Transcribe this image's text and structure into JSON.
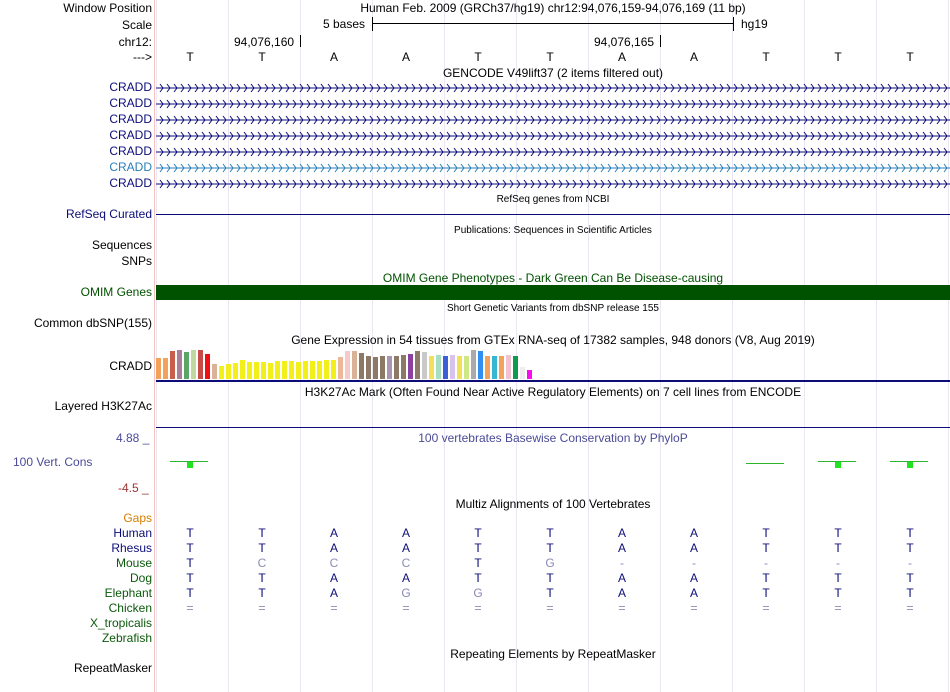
{
  "header": {
    "window_position_label": "Window Position",
    "window_position_value": "Human Feb. 2009 (GRCh37/hg19)   chr12:94,076,159-94,076,169 (11 bp)",
    "scale_label": "Scale",
    "scale_text": "5 bases",
    "scale_assembly": "hg19",
    "chrom_label": "chr12:",
    "pos_left": "94,076,160",
    "pos_right": "94,076,165",
    "strand_label": "--->",
    "bases": [
      "T",
      "T",
      "A",
      "A",
      "T",
      "T",
      "A",
      "A",
      "T",
      "T",
      "T"
    ]
  },
  "gencode": {
    "title": "GENCODE V49lift37 (2 items filtered out)",
    "transcripts": [
      "CRADD",
      "CRADD",
      "CRADD",
      "CRADD",
      "CRADD",
      "CRADD",
      "CRADD"
    ],
    "colors": [
      "#0c0c78",
      "#0c0c78",
      "#0c0c78",
      "#0c0c78",
      "#0c0c78",
      "#2a7fb8",
      "#0c0c78"
    ]
  },
  "refseq": {
    "label": "RefSeq Curated",
    "title": "RefSeq genes from NCBI"
  },
  "publications": {
    "title": "Publications: Sequences in Scientific Articles",
    "label_sequences": "Sequences",
    "label_snps": "SNPs"
  },
  "omim": {
    "title": "OMIM Gene Phenotypes - Dark Green Can Be Disease-causing",
    "label": "OMIM Genes",
    "color": "#005100"
  },
  "dbsnp": {
    "title": "Short Genetic Variants from dbSNP release 155",
    "label": "Common dbSNP(155)"
  },
  "gtex": {
    "title": "Gene Expression in 54 tissues from GTEx RNA-seq of 17382 samples, 948 donors (V8, Aug 2019)",
    "label": "CRADD",
    "values": [
      0.72,
      0.72,
      0.95,
      1.0,
      0.92,
      1.0,
      1.0,
      0.85,
      0.5,
      0.45,
      0.5,
      0.55,
      0.65,
      0.6,
      0.6,
      0.6,
      0.55,
      0.62,
      0.62,
      0.62,
      0.6,
      0.62,
      0.62,
      0.62,
      0.65,
      0.65,
      0.75,
      0.95,
      0.95,
      0.9,
      0.8,
      0.75,
      0.8,
      0.8,
      0.8,
      0.82,
      0.85,
      0.95,
      0.92,
      0.8,
      0.82,
      0.78,
      0.82,
      0.8,
      0.78,
      1.0,
      0.95,
      0.8,
      0.78,
      0.78,
      0.82,
      0.8,
      0.4,
      0.3
    ],
    "colors": [
      "#f2a25a",
      "#f2a25a",
      "#c95f4b",
      "#ab7d99",
      "#5ba666",
      "#c1d9a0",
      "#c84a47",
      "#f10d12",
      "#d9b298",
      "#f3ef18",
      "#f3ef18",
      "#f3ef18",
      "#f3ef18",
      "#f3ef18",
      "#f3ef18",
      "#f3ef18",
      "#f3ef18",
      "#f3ef18",
      "#f3ef18",
      "#f3ef18",
      "#f3ef18",
      "#f3ef18",
      "#f3ef18",
      "#f3ef18",
      "#f3ef18",
      "#f3ef18",
      "#eeb79a",
      "#f5cac8",
      "#d9b298",
      "#8c7966",
      "#8c7966",
      "#8c7966",
      "#8c7966",
      "#a996b3",
      "#8c7966",
      "#8c7966",
      "#8c40a0",
      "#8c7966",
      "#c9c9c9",
      "#f2df5a",
      "#a7dfc1",
      "#3a5fd6",
      "#d7c2f0",
      "#f2df5a",
      "#cde884",
      "#aaaaaa",
      "#2f8ff2",
      "#f2a25a",
      "#36b8d3",
      "#f2a25a",
      "#f2c2d0",
      "#0f9a4f",
      "#eeeeee",
      "#fa0ef0"
    ]
  },
  "h3k27ac": {
    "title": "H3K27Ac Mark (Often Found Near Active Regulatory Elements) on 7 cell lines from ENCODE",
    "label": "Layered H3K27Ac"
  },
  "phylop": {
    "title": "100 vertebrates Basewise Conservation by PhyloP",
    "label": "100 Vert. Cons",
    "ymax_label": "4.88 _",
    "ymin_label": "-4.5 _",
    "values": [
      0.5,
      0,
      0,
      0,
      0,
      0,
      0,
      0,
      -0.1,
      0.55,
      0.55
    ],
    "ymax": 4.88,
    "ymin": -4.5
  },
  "multiz": {
    "title": "Multiz Alignments of 100 Vertebrates",
    "gaps_label": "Gaps",
    "species": [
      {
        "name": "Human",
        "bases": [
          "T",
          "T",
          "A",
          "A",
          "T",
          "T",
          "A",
          "A",
          "T",
          "T",
          "T"
        ],
        "dim": [
          0,
          0,
          0,
          0,
          0,
          0,
          0,
          0,
          0,
          0,
          0
        ]
      },
      {
        "name": "Rhesus",
        "bases": [
          "T",
          "T",
          "A",
          "A",
          "T",
          "T",
          "A",
          "A",
          "T",
          "T",
          "T"
        ],
        "dim": [
          0,
          0,
          0,
          0,
          0,
          0,
          0,
          0,
          0,
          0,
          0
        ]
      },
      {
        "name": "Mouse",
        "bases": [
          "T",
          "C",
          "C",
          "C",
          "T",
          "G",
          "-",
          "-",
          "-",
          "-",
          "-"
        ],
        "dim": [
          0,
          1,
          1,
          1,
          0,
          1,
          1,
          1,
          1,
          1,
          1
        ]
      },
      {
        "name": "Dog",
        "bases": [
          "T",
          "T",
          "A",
          "A",
          "T",
          "T",
          "A",
          "A",
          "T",
          "T",
          "T"
        ],
        "dim": [
          0,
          0,
          0,
          0,
          0,
          0,
          0,
          0,
          0,
          0,
          0
        ]
      },
      {
        "name": "Elephant",
        "bases": [
          "T",
          "T",
          "A",
          "G",
          "G",
          "T",
          "A",
          "A",
          "T",
          "T",
          "T"
        ],
        "dim": [
          0,
          0,
          0,
          1,
          1,
          0,
          0,
          0,
          0,
          0,
          0
        ]
      },
      {
        "name": "Chicken",
        "bases": [
          "=",
          "=",
          "=",
          "=",
          "=",
          "=",
          "=",
          "=",
          "=",
          "=",
          "="
        ],
        "dim": [
          1,
          1,
          1,
          1,
          1,
          1,
          1,
          1,
          1,
          1,
          1
        ]
      },
      {
        "name": "X_tropicalis",
        "bases": [],
        "dim": []
      },
      {
        "name": "Zebrafish",
        "bases": [],
        "dim": []
      }
    ]
  },
  "repeatmasker": {
    "title": "Repeating Elements by RepeatMasker",
    "label": "RepeatMasker"
  },
  "colors": {
    "navy": "#0c0c78",
    "species_green": "#0b5a0b",
    "gaps_orange": "#d47f00",
    "phylo_label": "#4a4a99",
    "phylo_min": "#993333",
    "phylo_green": "#1fe41f"
  }
}
